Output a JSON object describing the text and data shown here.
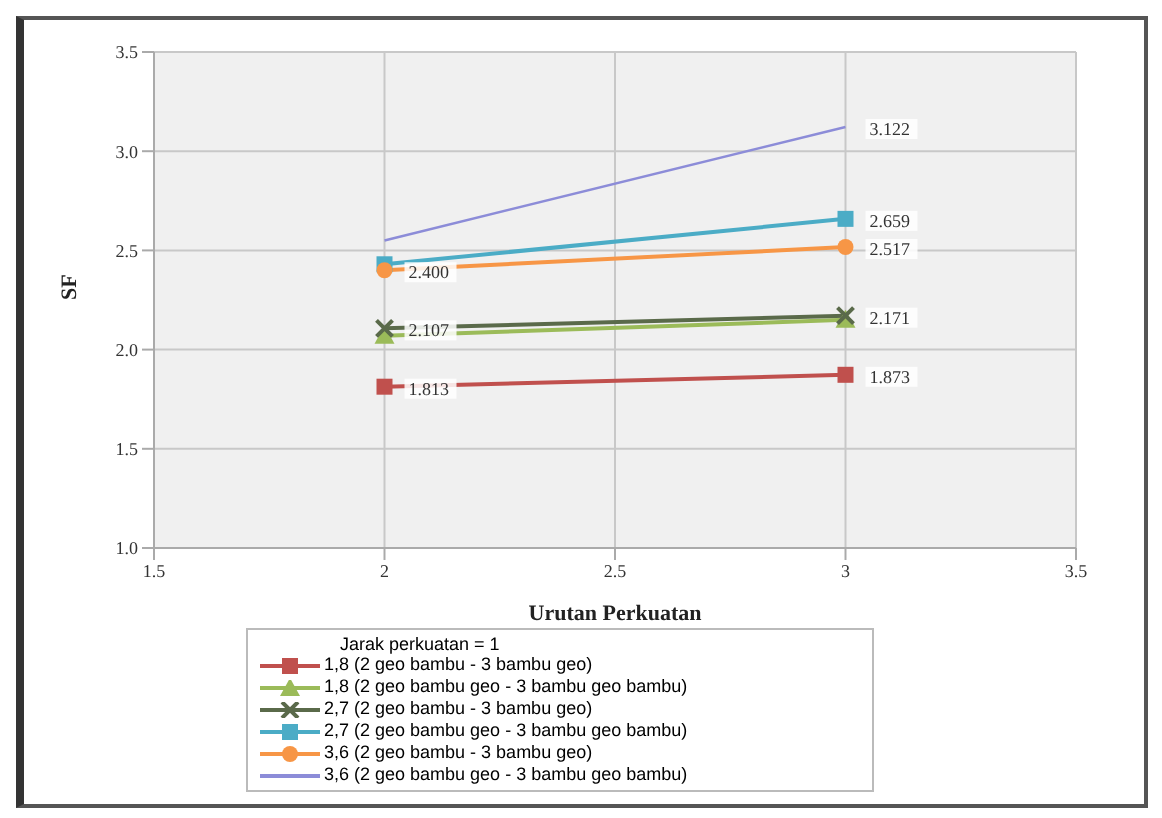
{
  "chart_data": {
    "type": "line",
    "xlabel": "Urutan Perkuatan",
    "ylabel": "SF",
    "legend_title": "Jarak perkuatan = 1",
    "x": [
      2,
      3
    ],
    "xlim": [
      1.5,
      3.5
    ],
    "xticks": [
      1.5,
      2,
      2.5,
      3,
      3.5
    ],
    "ylim": [
      1.0,
      3.5
    ],
    "yticks": [
      {
        "value": 1.0,
        "label": "1.0"
      },
      {
        "value": 1.5,
        "label": "1.5"
      },
      {
        "value": 2.0,
        "label": "2.0"
      },
      {
        "value": 2.5,
        "label": "2.5"
      },
      {
        "value": 3.0,
        "label": "3.0"
      },
      {
        "value": 3.5,
        "label": "3.5"
      }
    ],
    "grid": true,
    "legend": "bottom",
    "series": [
      {
        "name": "1,8 (2 geo bambu - 3 bambu geo)",
        "color": "#c0504d",
        "marker": "square",
        "values": [
          1.813,
          1.873
        ],
        "value_labels": [
          "1.813",
          "1.873"
        ]
      },
      {
        "name": "1,8 (2 geo bambu geo - 3 bambu geo bambu)",
        "color": "#9bbb59",
        "marker": "triangle",
        "values": [
          2.07,
          2.15
        ],
        "value_labels": [
          null,
          null
        ]
      },
      {
        "name": "2,7 (2 geo bambu - 3 bambu geo)",
        "color": "#5a6a4a",
        "marker": "cross",
        "values": [
          2.107,
          2.171
        ],
        "value_labels": [
          "2.107",
          "2.171"
        ]
      },
      {
        "name": "2,7 (2 geo bambu geo - 3 bambu geo bambu)",
        "color": "#4bacc6",
        "marker": "square",
        "values": [
          2.43,
          2.659
        ],
        "value_labels": [
          null,
          "2.659"
        ]
      },
      {
        "name": "3,6 (2 geo bambu - 3 bambu geo)",
        "color": "#f79646",
        "marker": "circle",
        "values": [
          2.4,
          2.517
        ],
        "value_labels": [
          "2.400",
          "2.517"
        ]
      },
      {
        "name": "3,6 (2 geo bambu geo - 3 bambu geo bambu)",
        "color": "#8c8cd8",
        "marker": "none",
        "values": [
          2.55,
          3.122
        ],
        "value_labels": [
          null,
          "3.122"
        ]
      }
    ]
  }
}
